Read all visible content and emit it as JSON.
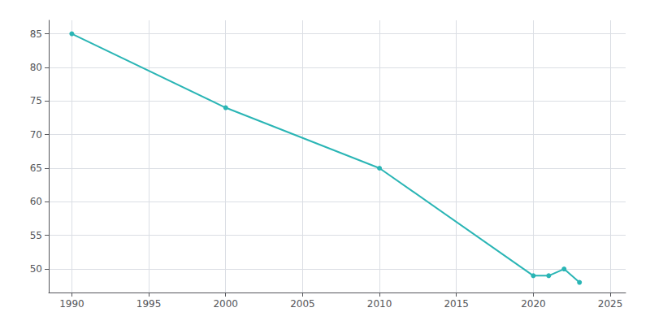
{
  "chart_data": {
    "type": "line",
    "x": [
      1990,
      2000,
      2010,
      2020,
      2021,
      2022,
      2023
    ],
    "values": [
      85,
      74,
      65,
      49,
      49,
      50,
      48
    ],
    "color": "#2ab5b5",
    "marker": "circle",
    "xlim": [
      1988.5,
      2026
    ],
    "ylim": [
      46.5,
      87
    ],
    "xticks": [
      1990,
      1995,
      2000,
      2005,
      2010,
      2015,
      2020,
      2025
    ],
    "yticks": [
      50,
      55,
      60,
      65,
      70,
      75,
      80,
      85
    ],
    "grid": true
  }
}
